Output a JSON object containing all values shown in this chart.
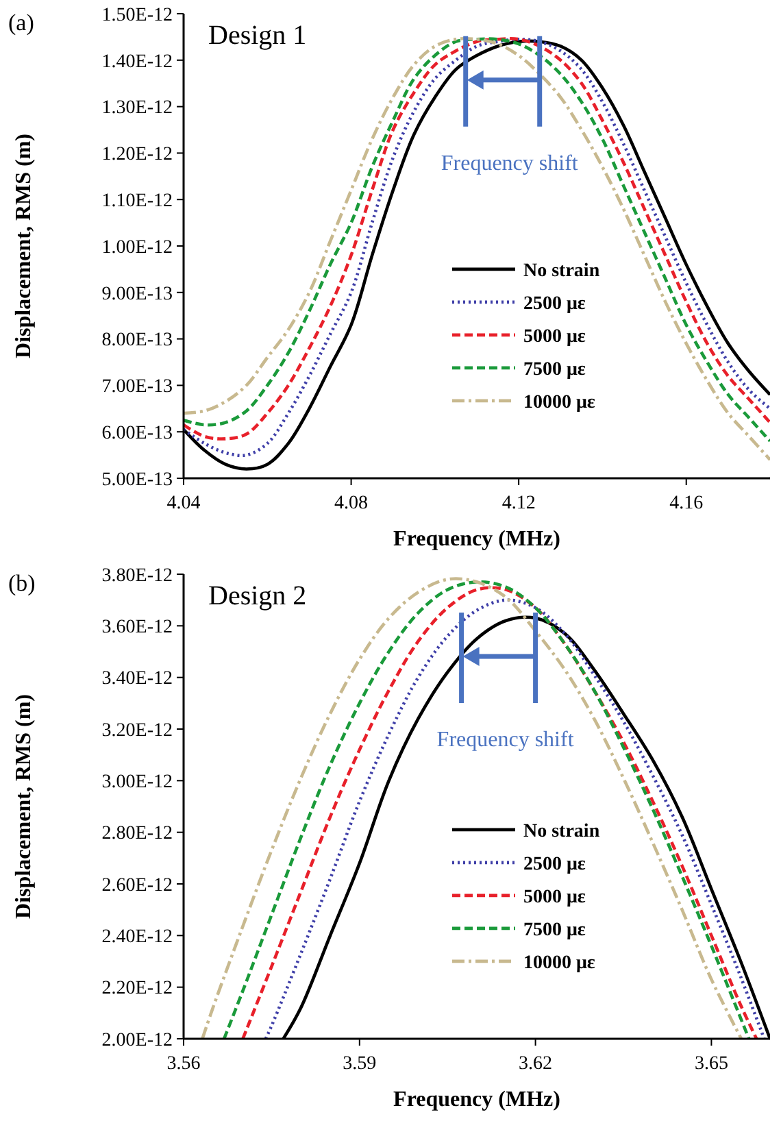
{
  "chart_data": [
    {
      "type": "line",
      "xlabel": "Frequency (MHz)",
      "ylabel": "Displacement, RMS (m)",
      "annotations": [
        "(a)",
        "Design 1",
        {
          "text": "Frequency shift",
          "x": 4.125,
          "y": 1.44e-12
        }
      ],
      "legend": "right",
      "grid": false,
      "xlim": [
        4.04,
        4.18
      ],
      "xticks": [
        4.04,
        4.08,
        4.12,
        4.16
      ],
      "ylim": [
        5e-13,
        1.5e-12
      ],
      "yticks": [
        {
          "value": 5e-13,
          "label": "5.00E-13"
        },
        {
          "value": 6e-13,
          "label": "6.00E-13"
        },
        {
          "value": 7e-13,
          "label": "7.00E-13"
        },
        {
          "value": 8e-13,
          "label": "8.00E-13"
        },
        {
          "value": 9e-13,
          "label": "9.00E-13"
        },
        {
          "value": 1e-12,
          "label": "1.00E-12"
        },
        {
          "value": 1.1e-12,
          "label": "1.10E-12"
        },
        {
          "value": 1.2e-12,
          "label": "1.20E-12"
        },
        {
          "value": 1.3e-12,
          "label": "1.30E-12"
        },
        {
          "value": 1.4e-12,
          "label": "1.40E-12"
        },
        {
          "value": 1.5e-12,
          "label": "1.50E-12"
        }
      ],
      "x": [
        4.04,
        4.045,
        4.05,
        4.055,
        4.06,
        4.065,
        4.07,
        4.075,
        4.08,
        4.085,
        4.09,
        4.095,
        4.1,
        4.105,
        4.11,
        4.115,
        4.12,
        4.125,
        4.13,
        4.135,
        4.14,
        4.145,
        4.15,
        4.155,
        4.16,
        4.165,
        4.17,
        4.175,
        4.18
      ],
      "series": [
        {
          "name": "No strain",
          "color": "#000000",
          "line_style": "solid",
          "values": [
            6.05e-13,
            5.6e-13,
            5.3e-13,
            5.2e-13,
            5.3e-13,
            5.75e-13,
            6.5e-13,
            7.4e-13,
            8.3e-13,
            9.8e-13,
            1.12e-12,
            1.24e-12,
            1.32e-12,
            1.38e-12,
            1.41e-12,
            1.43e-12,
            1.44e-12,
            1.44e-12,
            1.43e-12,
            1.4e-12,
            1.34e-12,
            1.26e-12,
            1.16e-12,
            1.06e-12,
            9.6e-13,
            8.7e-13,
            7.9e-13,
            7.3e-13,
            6.8e-13
          ]
        },
        {
          "name": "2500 με",
          "color": "#3f3fa8",
          "line_style": "dotted",
          "values": [
            6.05e-13,
            5.75e-13,
            5.55e-13,
            5.5e-13,
            5.75e-13,
            6.4e-13,
            7.2e-13,
            8.1e-13,
            9e-13,
            1.05e-12,
            1.19e-12,
            1.29e-12,
            1.36e-12,
            1.4e-12,
            1.43e-12,
            1.44e-12,
            1.445e-12,
            1.44e-12,
            1.42e-12,
            1.38e-12,
            1.31e-12,
            1.22e-12,
            1.12e-12,
            1.02e-12,
            9.2e-13,
            8.3e-13,
            7.5e-13,
            6.9e-13,
            6.5e-13
          ]
        },
        {
          "name": "5000 με",
          "color": "#e8202a",
          "line_style": "dashed",
          "values": [
            6.15e-13,
            5.9e-13,
            5.85e-13,
            5.95e-13,
            6.4e-13,
            7e-13,
            7.8e-13,
            8.7e-13,
            9.8e-13,
            1.12e-12,
            1.25e-12,
            1.33e-12,
            1.39e-12,
            1.42e-12,
            1.44e-12,
            1.445e-12,
            1.445e-12,
            1.43e-12,
            1.4e-12,
            1.35e-12,
            1.27e-12,
            1.18e-12,
            1.08e-12,
            9.8e-13,
            8.8e-13,
            7.9e-13,
            7.2e-13,
            6.7e-13,
            6.2e-13
          ]
        },
        {
          "name": "7500 με",
          "color": "#1a9a3a",
          "line_style": "dashed",
          "values": [
            6.25e-13,
            6.15e-13,
            6.2e-13,
            6.45e-13,
            7e-13,
            7.7e-13,
            8.6e-13,
            9.6e-13,
            1.05e-12,
            1.17e-12,
            1.27e-12,
            1.36e-12,
            1.41e-12,
            1.44e-12,
            1.445e-12,
            1.445e-12,
            1.435e-12,
            1.41e-12,
            1.37e-12,
            1.31e-12,
            1.23e-12,
            1.13e-12,
            1.03e-12,
            9.3e-13,
            8.3e-13,
            7.5e-13,
            6.8e-13,
            6.3e-13,
            5.8e-13
          ]
        },
        {
          "name": "10000 με",
          "color": "#c8b98f",
          "line_style": "dashdot",
          "values": [
            6.4e-13,
            6.45e-13,
            6.65e-13,
            7e-13,
            7.6e-13,
            8.2e-13,
            9e-13,
            1.01e-12,
            1.12e-12,
            1.23e-12,
            1.32e-12,
            1.39e-12,
            1.43e-12,
            1.445e-12,
            1.445e-12,
            1.435e-12,
            1.41e-12,
            1.37e-12,
            1.32e-12,
            1.25e-12,
            1.17e-12,
            1.08e-12,
            9.8e-13,
            8.8e-13,
            7.9e-13,
            7.1e-13,
            6.4e-13,
            5.9e-13,
            5.4e-13
          ]
        }
      ]
    },
    {
      "type": "line",
      "xlabel": "Frequency (MHz)",
      "ylabel": "Displacement, RMS (m)",
      "annotations": [
        "(b)",
        "Design 2",
        {
          "text": "Frequency shift",
          "x": 3.62,
          "y": 3.63e-12
        }
      ],
      "legend": "right",
      "grid": false,
      "xlim": [
        3.56,
        3.66
      ],
      "xticks": [
        3.56,
        3.59,
        3.62,
        3.65
      ],
      "ylim": [
        2e-12,
        3.8e-12
      ],
      "yticks": [
        {
          "value": 2e-12,
          "label": "2.00E-12"
        },
        {
          "value": 2.2e-12,
          "label": "2.20E-12"
        },
        {
          "value": 2.4e-12,
          "label": "2.40E-12"
        },
        {
          "value": 2.6e-12,
          "label": "2.60E-12"
        },
        {
          "value": 2.8e-12,
          "label": "2.80E-12"
        },
        {
          "value": 3e-12,
          "label": "3.00E-12"
        },
        {
          "value": 3.2e-12,
          "label": "3.20E-12"
        },
        {
          "value": 3.4e-12,
          "label": "3.40E-12"
        },
        {
          "value": 3.6e-12,
          "label": "3.60E-12"
        },
        {
          "value": 3.8e-12,
          "label": "3.80E-12"
        }
      ],
      "series": [
        {
          "name": "No strain",
          "color": "#000000",
          "line_style": "solid",
          "x": [
            3.577,
            3.58,
            3.585,
            3.59,
            3.595,
            3.6,
            3.605,
            3.61,
            3.615,
            3.62,
            3.625,
            3.63,
            3.635,
            3.64,
            3.645,
            3.65,
            3.655,
            3.66
          ],
          "values": [
            2e-12,
            2.12e-12,
            2.4e-12,
            2.68e-12,
            3e-12,
            3.24e-12,
            3.42e-12,
            3.55e-12,
            3.62e-12,
            3.63e-12,
            3.57e-12,
            3.43e-12,
            3.26e-12,
            3.08e-12,
            2.86e-12,
            2.58e-12,
            2.3e-12,
            2e-12
          ]
        },
        {
          "name": "2500 με",
          "color": "#3f3fa8",
          "line_style": "dotted",
          "x": [
            3.574,
            3.575,
            3.58,
            3.585,
            3.59,
            3.595,
            3.6,
            3.605,
            3.61,
            3.615,
            3.62,
            3.625,
            3.63,
            3.635,
            3.64,
            3.645,
            3.65,
            3.655,
            3.659
          ],
          "values": [
            2e-12,
            2.05e-12,
            2.33e-12,
            2.62e-12,
            2.92e-12,
            3.18e-12,
            3.4e-12,
            3.56e-12,
            3.66e-12,
            3.7e-12,
            3.67e-12,
            3.57e-12,
            3.41e-12,
            3.23e-12,
            3.02e-12,
            2.79e-12,
            2.52e-12,
            2.24e-12,
            2e-12
          ]
        },
        {
          "name": "5000 με",
          "color": "#e8202a",
          "line_style": "dashed",
          "x": [
            3.5701,
            3.575,
            3.58,
            3.585,
            3.59,
            3.595,
            3.6,
            3.605,
            3.61,
            3.615,
            3.62,
            3.625,
            3.63,
            3.635,
            3.64,
            3.645,
            3.65,
            3.655,
            3.6577
          ],
          "values": [
            2e-12,
            2.28e-12,
            2.57e-12,
            2.86e-12,
            3.12e-12,
            3.35e-12,
            3.54e-12,
            3.67e-12,
            3.74e-12,
            3.74e-12,
            3.67e-12,
            3.53e-12,
            3.35e-12,
            3.15e-12,
            2.92e-12,
            2.67e-12,
            2.4e-12,
            2.13e-12,
            2e-12
          ]
        },
        {
          "name": "7500 με",
          "color": "#1a9a3a",
          "line_style": "dashed",
          "x": [
            3.5669,
            3.57,
            3.575,
            3.58,
            3.585,
            3.59,
            3.595,
            3.6,
            3.605,
            3.61,
            3.615,
            3.62,
            3.625,
            3.63,
            3.635,
            3.64,
            3.645,
            3.65,
            3.6564
          ],
          "values": [
            2e-12,
            2.18e-12,
            2.48e-12,
            2.78e-12,
            3.06e-12,
            3.3e-12,
            3.5e-12,
            3.65e-12,
            3.74e-12,
            3.77e-12,
            3.75e-12,
            3.67e-12,
            3.53e-12,
            3.35e-12,
            3.13e-12,
            2.89e-12,
            2.63e-12,
            2.36e-12,
            2e-12
          ]
        },
        {
          "name": "10000 με",
          "color": "#c8b98f",
          "line_style": "dashdot",
          "x": [
            3.5632,
            3.565,
            3.57,
            3.575,
            3.58,
            3.585,
            3.59,
            3.595,
            3.6,
            3.605,
            3.61,
            3.615,
            3.62,
            3.625,
            3.63,
            3.635,
            3.64,
            3.645,
            3.65,
            3.6551
          ],
          "values": [
            2e-12,
            2.12e-12,
            2.43e-12,
            2.73e-12,
            3.01e-12,
            3.26e-12,
            3.47e-12,
            3.63e-12,
            3.73e-12,
            3.78e-12,
            3.77e-12,
            3.71e-12,
            3.58e-12,
            3.43e-12,
            3.24e-12,
            3.01e-12,
            2.76e-12,
            2.5e-12,
            2.23e-12,
            2e-12
          ]
        }
      ]
    }
  ]
}
